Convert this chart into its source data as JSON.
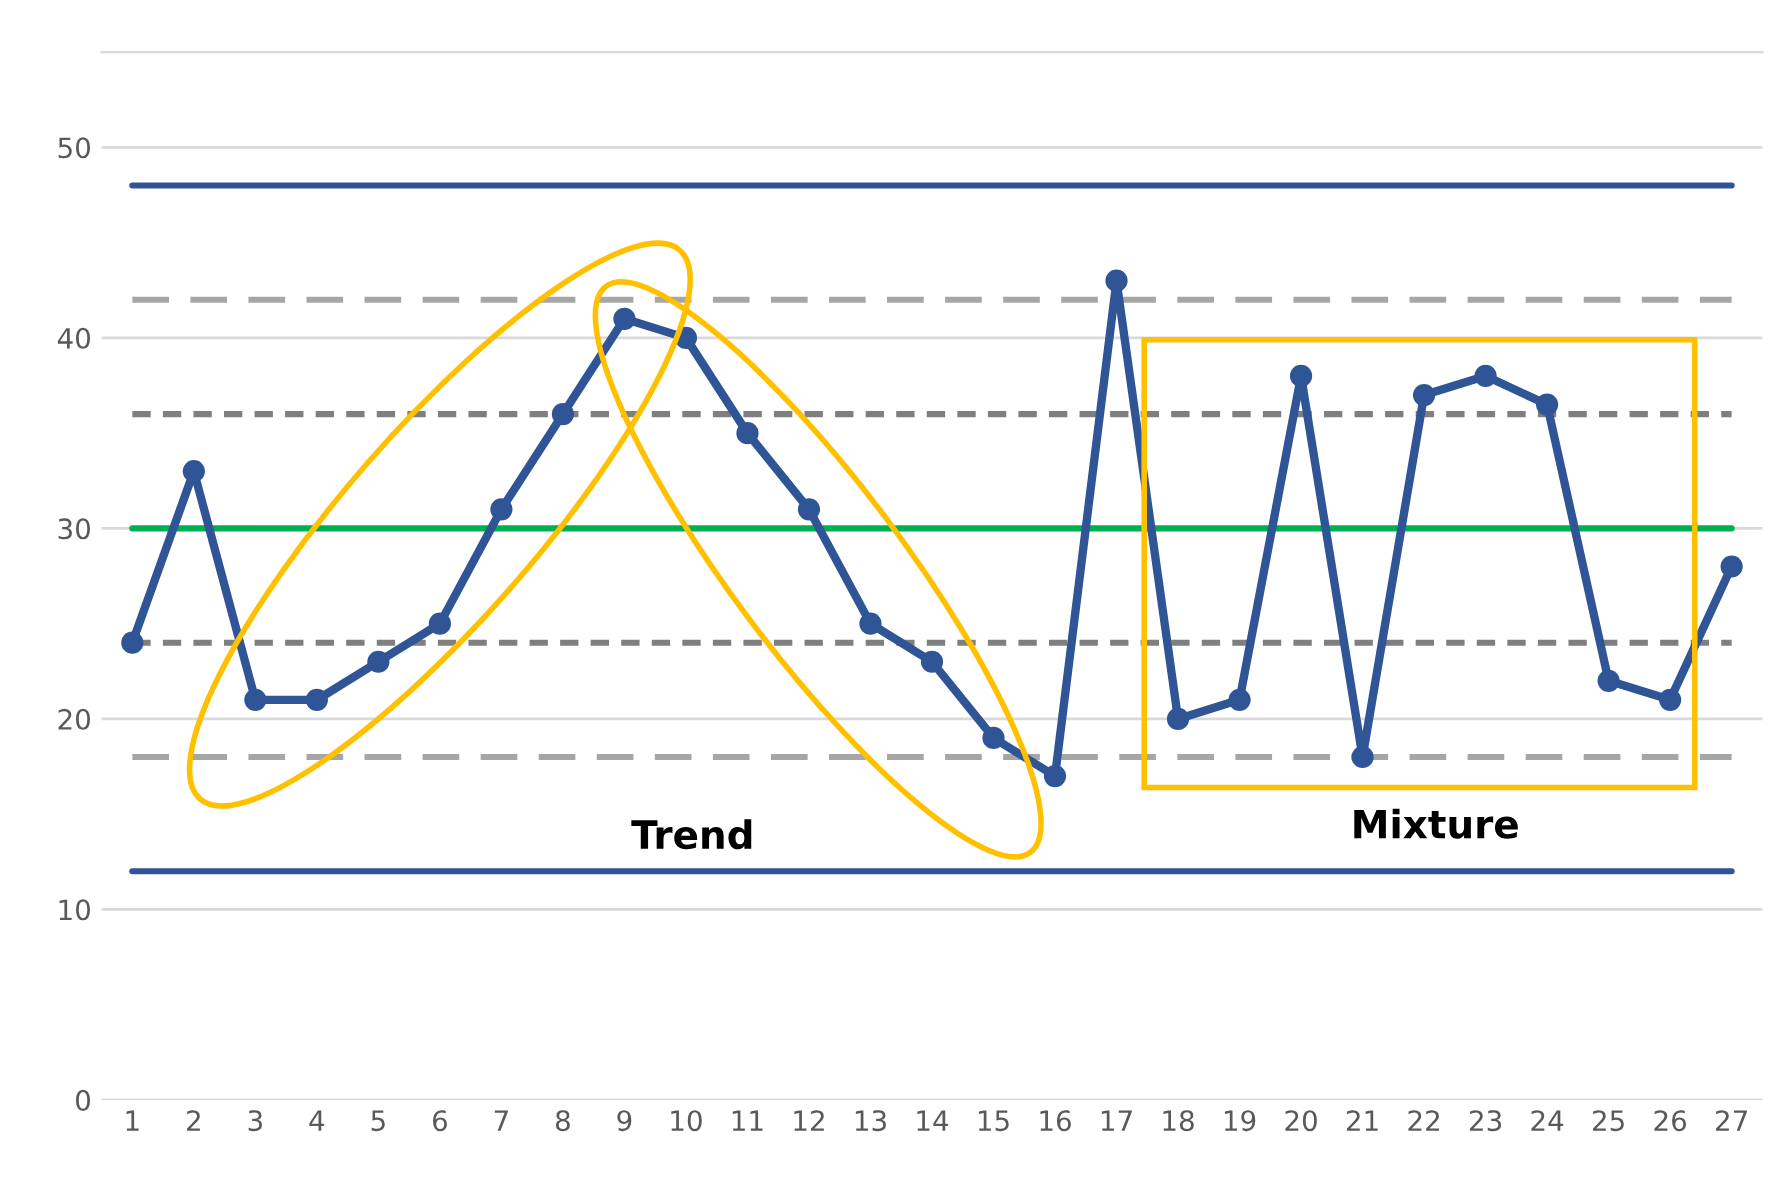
{
  "chart_data": {
    "type": "line",
    "categories": [
      "1",
      "2",
      "3",
      "4",
      "5",
      "6",
      "7",
      "8",
      "9",
      "10",
      "11",
      "12",
      "13",
      "14",
      "15",
      "16",
      "17",
      "18",
      "19",
      "20",
      "21",
      "22",
      "23",
      "24",
      "25",
      "26",
      "27"
    ],
    "series": [
      {
        "color": "#2f5597",
        "values": [
          24,
          33,
          21,
          21,
          23,
          25,
          31,
          36,
          41,
          40,
          35,
          31,
          25,
          23,
          19,
          17,
          43,
          20,
          21,
          38,
          18,
          37,
          38,
          36.5,
          22,
          21,
          28
        ]
      }
    ],
    "marker": "circle",
    "line_style": "solid",
    "grid": "y",
    "ylim": [
      0,
      55
    ],
    "yticks": [
      0,
      10,
      20,
      30,
      40,
      50
    ],
    "ref_lines": [
      {
        "axis": "y",
        "value": 48,
        "color": "#2f5597",
        "line_style": "solid"
      },
      {
        "axis": "y",
        "value": 42,
        "color": "#a6a6a6",
        "line_style": "longdash"
      },
      {
        "axis": "y",
        "value": 36,
        "color": "#7f7f7f",
        "line_style": "dashed"
      },
      {
        "axis": "y",
        "value": 30,
        "color": "#00b050",
        "line_style": "solid"
      },
      {
        "axis": "y",
        "value": 24,
        "color": "#7f7f7f",
        "line_style": "dashed"
      },
      {
        "axis": "y",
        "value": 18,
        "color": "#a6a6a6",
        "line_style": "longdash"
      },
      {
        "axis": "y",
        "value": 12,
        "color": "#2f5597",
        "line_style": "solid"
      }
    ],
    "annotations": [
      "Trend",
      "Mixture"
    ]
  }
}
